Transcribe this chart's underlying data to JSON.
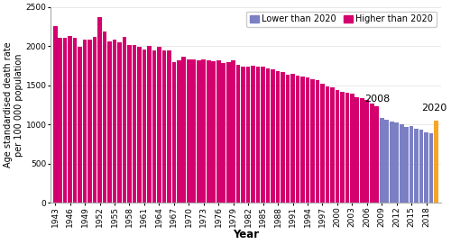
{
  "years": [
    1943,
    1944,
    1945,
    1946,
    1947,
    1948,
    1949,
    1950,
    1951,
    1952,
    1953,
    1954,
    1955,
    1956,
    1957,
    1958,
    1959,
    1960,
    1961,
    1962,
    1963,
    1964,
    1965,
    1966,
    1967,
    1968,
    1969,
    1970,
    1971,
    1972,
    1973,
    1974,
    1975,
    1976,
    1977,
    1978,
    1979,
    1980,
    1981,
    1982,
    1983,
    1984,
    1985,
    1986,
    1987,
    1988,
    1989,
    1990,
    1991,
    1992,
    1993,
    1994,
    1995,
    1996,
    1997,
    1998,
    1999,
    2000,
    2001,
    2002,
    2003,
    2004,
    2005,
    2006,
    2007,
    2008,
    2009,
    2010,
    2011,
    2012,
    2013,
    2014,
    2015,
    2016,
    2017,
    2018,
    2019,
    2020
  ],
  "values": [
    2250,
    2100,
    2100,
    2130,
    2110,
    1990,
    2080,
    2080,
    2120,
    2370,
    2190,
    2060,
    2080,
    2050,
    2120,
    2010,
    2010,
    1990,
    1960,
    2000,
    1950,
    1990,
    1950,
    1950,
    1800,
    1820,
    1860,
    1830,
    1830,
    1820,
    1830,
    1820,
    1810,
    1820,
    1780,
    1790,
    1820,
    1760,
    1740,
    1740,
    1750,
    1740,
    1740,
    1720,
    1700,
    1680,
    1670,
    1640,
    1650,
    1620,
    1610,
    1600,
    1580,
    1570,
    1520,
    1490,
    1470,
    1440,
    1420,
    1410,
    1390,
    1350,
    1340,
    1310,
    1270,
    1230,
    1080,
    1060,
    1040,
    1020,
    1000,
    970,
    980,
    950,
    930,
    900,
    890,
    1050
  ],
  "color_higher": "#d4006e",
  "color_lower": "#7b7fc4",
  "color_2020": "#f5a623",
  "threshold_year": 2009,
  "year_2020": 2020,
  "ylim": [
    0,
    2500
  ],
  "yticks": [
    0,
    500,
    1000,
    1500,
    2000,
    2500
  ],
  "ylabel": "Age standardised death rate\nper 100 000 population",
  "xlabel": "Year",
  "legend_lower": "Lower than 2020",
  "legend_higher": "Higher than 2020",
  "annotation_2008": "2008",
  "annotation_2020": "2020",
  "tick_fontsize": 6.5,
  "axis_fontsize": 7,
  "legend_fontsize": 7
}
